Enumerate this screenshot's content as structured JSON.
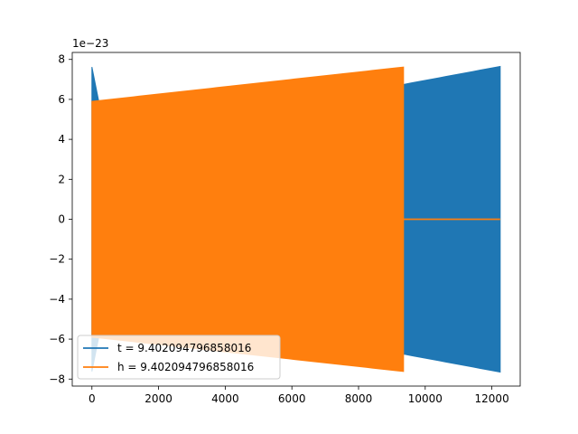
{
  "chart_data": {
    "type": "line",
    "title": "",
    "xlabel": "",
    "ylabel": "",
    "offset_text": "1e−23",
    "xlim": [
      -590,
      12850
    ],
    "ylim": [
      -8.35,
      8.35
    ],
    "x_ticks": [
      0,
      2000,
      4000,
      6000,
      8000,
      10000,
      12000
    ],
    "x_tick_labels": [
      "0",
      "2000",
      "4000",
      "6000",
      "8000",
      "10000",
      "12000"
    ],
    "y_ticks": [
      -8,
      -6,
      -4,
      -2,
      0,
      2,
      4,
      6,
      8
    ],
    "y_tick_labels": [
      "−8",
      "−6",
      "−4",
      "−2",
      "0",
      "2",
      "4",
      "6",
      "8"
    ],
    "grid": false,
    "legend_position": "lower-left",
    "series": [
      {
        "name": "t = 9.402094796858016",
        "color": "#1f77b4",
        "envelope": [
          {
            "x": 0,
            "y": 7.62
          },
          {
            "x": 30,
            "y": 7.55
          },
          {
            "x": 60,
            "y": 5.9
          },
          {
            "x": 9350,
            "y": 6.75
          },
          {
            "x": 12250,
            "y": 7.65
          }
        ]
      },
      {
        "name": "h = 9.402094796858016",
        "color": "#ff7f0e",
        "envelope": [
          {
            "x": 0,
            "y": 5.9
          },
          {
            "x": 9350,
            "y": 7.62
          }
        ],
        "flat_after": {
          "x_start": 9350,
          "x_end": 12250,
          "y": 0
        }
      }
    ]
  }
}
